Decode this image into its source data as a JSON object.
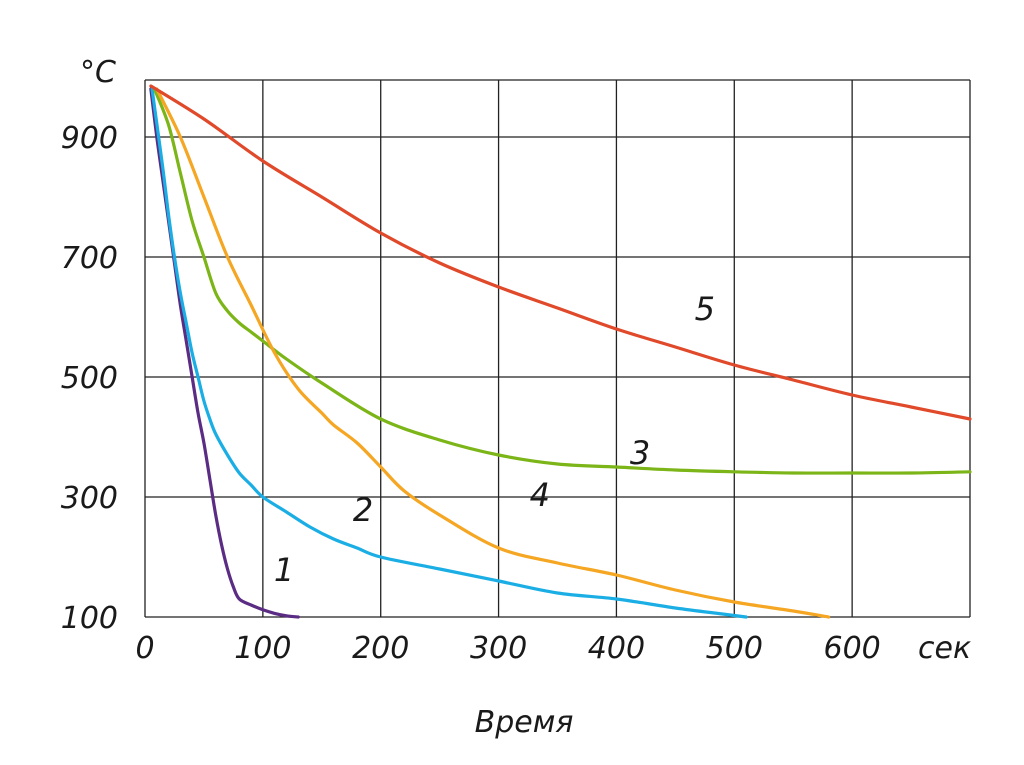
{
  "chart_data": {
    "type": "line",
    "title": "",
    "xlabel": "Время",
    "ylabel": "°С",
    "x_unit": "сек",
    "xlim": [
      0,
      700
    ],
    "ylim": [
      100,
      1000
    ],
    "x_ticks": [
      0,
      100,
      200,
      300,
      400,
      500,
      600
    ],
    "x_tick_labels": [
      "0",
      "100",
      "200",
      "300",
      "400",
      "500",
      "600"
    ],
    "y_ticks": [
      100,
      300,
      500,
      700,
      900
    ],
    "y_tick_labels": [
      "100",
      "300",
      "500",
      "700",
      "900"
    ],
    "grid": true,
    "series": [
      {
        "name": "1",
        "color": "#5B2C83",
        "label_at": [
          118,
          160
        ],
        "points": [
          [
            5,
            980
          ],
          [
            10,
            900
          ],
          [
            15,
            830
          ],
          [
            20,
            760
          ],
          [
            25,
            690
          ],
          [
            30,
            620
          ],
          [
            35,
            560
          ],
          [
            40,
            500
          ],
          [
            45,
            440
          ],
          [
            50,
            390
          ],
          [
            55,
            330
          ],
          [
            60,
            270
          ],
          [
            65,
            220
          ],
          [
            70,
            180
          ],
          [
            75,
            150
          ],
          [
            80,
            130
          ],
          [
            90,
            120
          ],
          [
            100,
            112
          ],
          [
            110,
            106
          ],
          [
            120,
            102
          ],
          [
            130,
            100
          ]
        ]
      },
      {
        "name": "2",
        "color": "#1AAEE5",
        "label_at": [
          185,
          260
        ],
        "points": [
          [
            6,
            980
          ],
          [
            15,
            850
          ],
          [
            20,
            770
          ],
          [
            25,
            700
          ],
          [
            30,
            640
          ],
          [
            35,
            590
          ],
          [
            40,
            540
          ],
          [
            45,
            500
          ],
          [
            50,
            460
          ],
          [
            55,
            430
          ],
          [
            60,
            405
          ],
          [
            70,
            370
          ],
          [
            80,
            340
          ],
          [
            90,
            320
          ],
          [
            100,
            300
          ],
          [
            120,
            275
          ],
          [
            140,
            250
          ],
          [
            160,
            230
          ],
          [
            180,
            215
          ],
          [
            200,
            200
          ],
          [
            250,
            180
          ],
          [
            300,
            160
          ],
          [
            350,
            140
          ],
          [
            400,
            130
          ],
          [
            450,
            115
          ],
          [
            490,
            105
          ],
          [
            510,
            100
          ]
        ]
      },
      {
        "name": "3",
        "color": "#7CB518",
        "label_at": [
          420,
          355
        ],
        "points": [
          [
            8,
            980
          ],
          [
            20,
            920
          ],
          [
            30,
            840
          ],
          [
            40,
            760
          ],
          [
            50,
            700
          ],
          [
            60,
            640
          ],
          [
            70,
            610
          ],
          [
            80,
            590
          ],
          [
            90,
            575
          ],
          [
            100,
            560
          ],
          [
            120,
            530
          ],
          [
            150,
            490
          ],
          [
            200,
            430
          ],
          [
            250,
            395
          ],
          [
            300,
            370
          ],
          [
            350,
            355
          ],
          [
            400,
            350
          ],
          [
            450,
            345
          ],
          [
            500,
            342
          ],
          [
            550,
            340
          ],
          [
            600,
            340
          ],
          [
            650,
            340
          ],
          [
            700,
            342
          ]
        ]
      },
      {
        "name": "4",
        "color": "#F5A623",
        "label_at": [
          335,
          285
        ],
        "points": [
          [
            10,
            980
          ],
          [
            30,
            900
          ],
          [
            50,
            800
          ],
          [
            70,
            700
          ],
          [
            90,
            620
          ],
          [
            110,
            540
          ],
          [
            130,
            480
          ],
          [
            150,
            440
          ],
          [
            160,
            420
          ],
          [
            180,
            390
          ],
          [
            200,
            350
          ],
          [
            220,
            310
          ],
          [
            250,
            270
          ],
          [
            300,
            215
          ],
          [
            350,
            190
          ],
          [
            400,
            170
          ],
          [
            450,
            145
          ],
          [
            500,
            125
          ],
          [
            550,
            110
          ],
          [
            580,
            100
          ]
        ]
      },
      {
        "name": "5",
        "color": "#E0492A",
        "label_at": [
          475,
          595
        ],
        "points": [
          [
            5,
            985
          ],
          [
            50,
            930
          ],
          [
            100,
            860
          ],
          [
            150,
            800
          ],
          [
            200,
            740
          ],
          [
            250,
            690
          ],
          [
            300,
            650
          ],
          [
            350,
            615
          ],
          [
            400,
            580
          ],
          [
            450,
            550
          ],
          [
            500,
            520
          ],
          [
            550,
            495
          ],
          [
            600,
            470
          ],
          [
            650,
            450
          ],
          [
            700,
            430
          ]
        ]
      }
    ]
  }
}
